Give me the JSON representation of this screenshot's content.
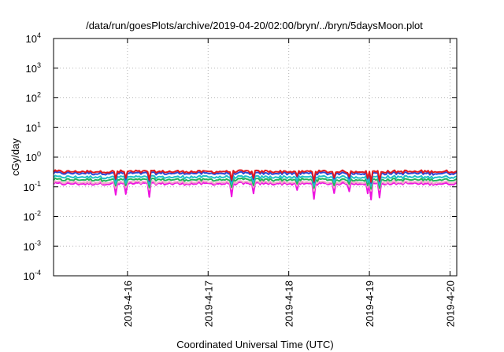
{
  "chart_data": {
    "type": "line",
    "title": "/data/run/goesPlots/archive/2019-04-20/02:00/bryn/../bryn/5daysMoon.plot",
    "xlabel": "Coordinated Universal Time (UTC)",
    "ylabel": "cGy/day",
    "yscale": "log",
    "ylim": [
      0.0001,
      10000
    ],
    "xlim": [
      "2019-04-15T02:00",
      "2019-04-20T02:00"
    ],
    "x_ticks": [
      "2019-4-16",
      "2019-4-17",
      "2019-4-18",
      "2019-4-19",
      "2019-4-20"
    ],
    "y_ticks": [
      {
        "base": "10",
        "exp": "4"
      },
      {
        "base": "10",
        "exp": "3"
      },
      {
        "base": "10",
        "exp": "2"
      },
      {
        "base": "10",
        "exp": "1"
      },
      {
        "base": "10",
        "exp": "0"
      },
      {
        "base": "10",
        "exp": "-1"
      },
      {
        "base": "10",
        "exp": "-2"
      },
      {
        "base": "10",
        "exp": "-3"
      },
      {
        "base": "10",
        "exp": "-4"
      }
    ],
    "grid": true,
    "legend": "none",
    "series": [
      {
        "color": "#e0181f",
        "level": 0.32,
        "dips": 0.7
      },
      {
        "color": "#2b45d6",
        "level": 0.28,
        "dips": 0.75
      },
      {
        "color": "#1fbfc9",
        "level": 0.21,
        "dips": 0.78
      },
      {
        "color": "#22b45a",
        "level": 0.17,
        "dips": 0.8
      },
      {
        "color": "#f0a8c8",
        "level": 0.14,
        "dips": 0.82
      },
      {
        "color": "#ee14e0",
        "level": 0.125,
        "dips": 0.45
      }
    ]
  }
}
